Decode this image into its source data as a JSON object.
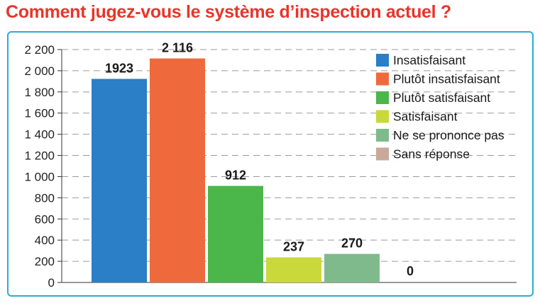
{
  "chart_data": {
    "type": "bar",
    "title": "Comment jugez-vous le système d’inspection actuel ?",
    "categories": [
      "Insatisfaisant",
      "Plutôt insatisfaisant",
      "Plutôt satisfaisant",
      "Satisfaisant",
      "Ne se prononce pas",
      "Sans réponse"
    ],
    "values": [
      1923,
      2116,
      912,
      237,
      270,
      0
    ],
    "value_labels": [
      "1923",
      "2 116",
      "912",
      "237",
      "270",
      "0"
    ],
    "colors": [
      "#2a7fc6",
      "#ee6a3d",
      "#4bb64a",
      "#c9d83b",
      "#7fba8c",
      "#c9a99a"
    ],
    "ylim": [
      0,
      2200
    ],
    "yticks": [
      0,
      200,
      400,
      600,
      800,
      1000,
      1200,
      1400,
      1600,
      1800,
      2000,
      2200
    ],
    "ytick_labels": [
      "0",
      "200",
      "400",
      "600",
      "800",
      "1 000",
      "1 200",
      "1 400",
      "1 600",
      "1 800",
      "2 000",
      "2 200"
    ],
    "grid": true,
    "legend_position": "top-right",
    "xlabel": "",
    "ylabel": ""
  }
}
